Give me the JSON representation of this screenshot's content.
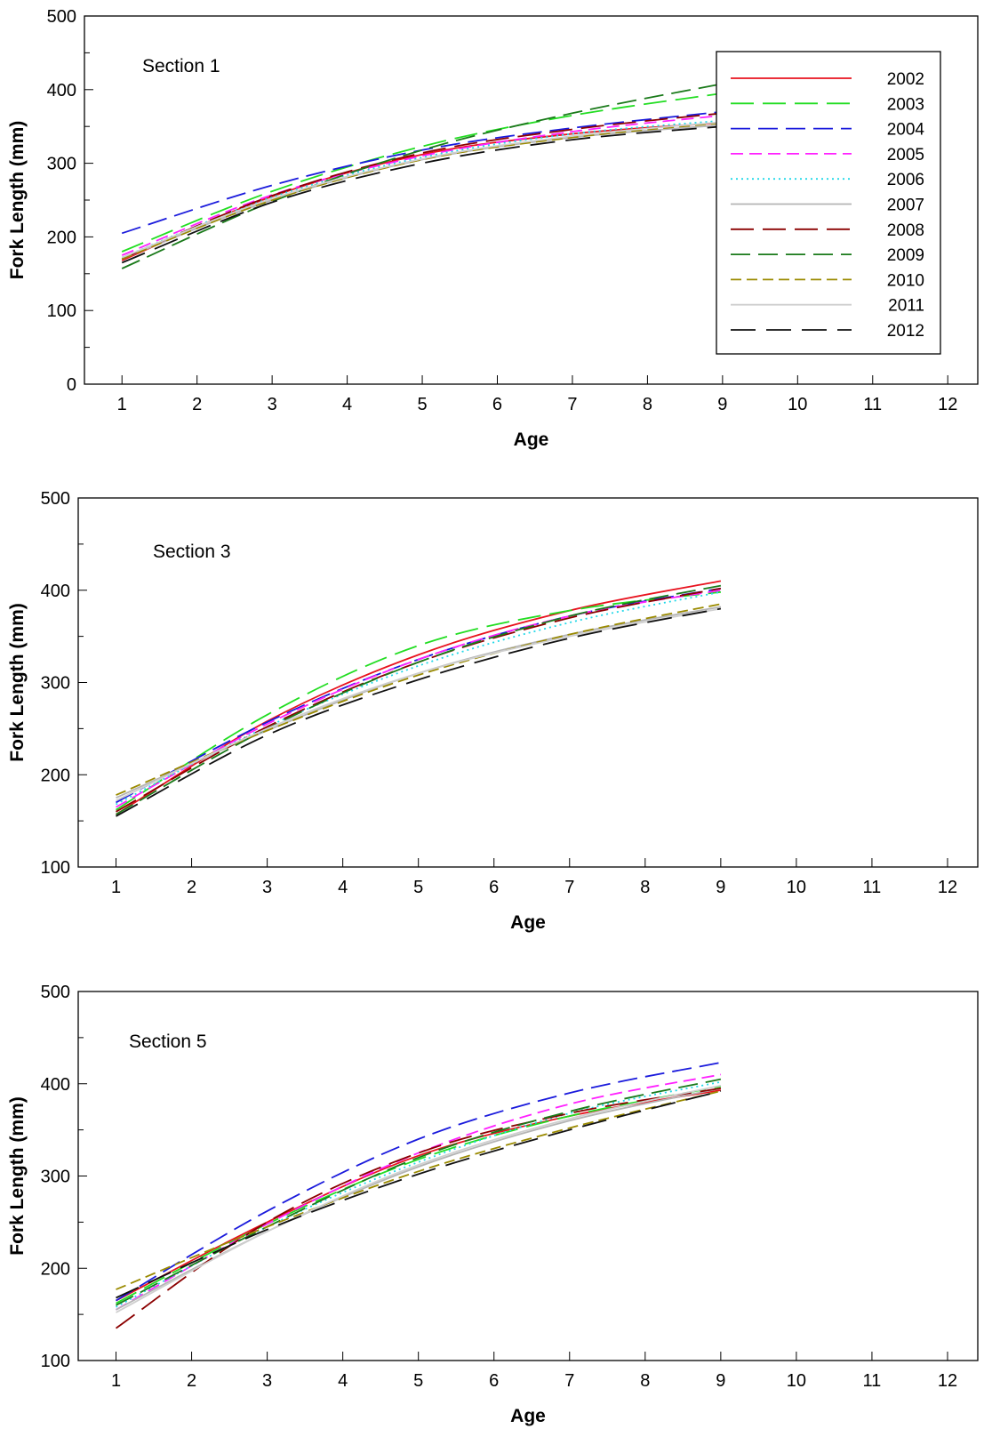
{
  "styles": {
    "2002": {
      "color": "#e8121e",
      "dash": ""
    },
    "2003": {
      "color": "#22dd22",
      "dash": "26 10"
    },
    "2004": {
      "color": "#1a1adc",
      "dash": "22 9"
    },
    "2005": {
      "color": "#ff20ff",
      "dash": "14 7"
    },
    "2006": {
      "color": "#22d8e8",
      "dash": "2 4"
    },
    "2007": {
      "color": "#b4b4b4",
      "dash": ""
    },
    "2008": {
      "color": "#8b0000",
      "dash": "26 10"
    },
    "2009": {
      "color": "#1a7a1a",
      "dash": "22 9"
    },
    "2010": {
      "color": "#9a8a00",
      "dash": "12 6"
    },
    "2011": {
      "color": "#cfcfcf",
      "dash": ""
    },
    "2012": {
      "color": "#111111",
      "dash": "28 12"
    }
  },
  "chart_data": [
    {
      "type": "line",
      "annotation": "Section 1",
      "xlabel": "Age",
      "ylabel": "Fork Length (mm)",
      "xlim": [
        0.5,
        12.4
      ],
      "ylim": [
        0,
        500
      ],
      "xticks": [
        "1",
        "2",
        "3",
        "4",
        "5",
        "6",
        "7",
        "8",
        "9",
        "10",
        "11",
        "12"
      ],
      "yticks": [
        "0",
        "100",
        "200",
        "300",
        "400",
        "500"
      ],
      "legend_position": "top-right",
      "legend": [
        "2002",
        "2003",
        "2004",
        "2005",
        "2006",
        "2007",
        "2008",
        "2009",
        "2010",
        "2011",
        "2012"
      ],
      "x": [
        1,
        3,
        5,
        7,
        9
      ],
      "series": [
        {
          "name": "2002",
          "values": [
            168,
            255,
            312,
            340,
            355
          ]
        },
        {
          "name": "2003",
          "values": [
            180,
            262,
            323,
            365,
            395
          ]
        },
        {
          "name": "2004",
          "values": [
            205,
            270,
            318,
            348,
            370
          ]
        },
        {
          "name": "2005",
          "values": [
            175,
            257,
            310,
            343,
            365
          ]
        },
        {
          "name": "2006",
          "values": [
            172,
            254,
            308,
            340,
            358
          ]
        },
        {
          "name": "2007",
          "values": [
            170,
            250,
            305,
            335,
            352
          ]
        },
        {
          "name": "2008",
          "values": [
            170,
            256,
            314,
            346,
            368
          ]
        },
        {
          "name": "2009",
          "values": [
            157,
            248,
            318,
            368,
            408
          ]
        },
        {
          "name": "2010",
          "values": [
            170,
            250,
            305,
            335,
            355
          ]
        },
        {
          "name": "2011",
          "values": [
            172,
            252,
            306,
            337,
            356
          ]
        },
        {
          "name": "2012",
          "values": [
            165,
            247,
            300,
            332,
            350
          ]
        }
      ]
    },
    {
      "type": "line",
      "annotation": "Section 3",
      "xlabel": "Age",
      "ylabel": "Fork Length (mm)",
      "xlim": [
        0.5,
        12.4
      ],
      "ylim": [
        100,
        500
      ],
      "xticks": [
        "1",
        "2",
        "3",
        "4",
        "5",
        "6",
        "7",
        "8",
        "9",
        "10",
        "11",
        "12"
      ],
      "yticks": [
        "100",
        "200",
        "300",
        "400",
        "500"
      ],
      "x": [
        1,
        3,
        5,
        7,
        9
      ],
      "series": [
        {
          "name": "2002",
          "values": [
            157,
            258,
            330,
            378,
            410
          ]
        },
        {
          "name": "2003",
          "values": [
            162,
            265,
            340,
            378,
            398
          ]
        },
        {
          "name": "2004",
          "values": [
            170,
            257,
            325,
            372,
            402
          ]
        },
        {
          "name": "2005",
          "values": [
            165,
            255,
            325,
            372,
            400
          ]
        },
        {
          "name": "2006",
          "values": [
            168,
            252,
            318,
            365,
            398
          ]
        },
        {
          "name": "2007",
          "values": [
            175,
            248,
            310,
            352,
            382
          ]
        },
        {
          "name": "2008",
          "values": [
            160,
            252,
            322,
            370,
            402
          ]
        },
        {
          "name": "2009",
          "values": [
            157,
            250,
            322,
            372,
            405
          ]
        },
        {
          "name": "2010",
          "values": [
            178,
            248,
            308,
            352,
            385
          ]
        },
        {
          "name": "2011",
          "values": [
            172,
            250,
            310,
            350,
            380
          ]
        },
        {
          "name": "2012",
          "values": [
            155,
            243,
            303,
            348,
            380
          ]
        }
      ]
    },
    {
      "type": "line",
      "annotation": "Section 5",
      "xlabel": "Age",
      "ylabel": "Fork Length (mm)",
      "xlim": [
        0.5,
        12.4
      ],
      "ylim": [
        100,
        500
      ],
      "xticks": [
        "1",
        "2",
        "3",
        "4",
        "5",
        "6",
        "7",
        "8",
        "9",
        "10",
        "11",
        "12"
      ],
      "yticks": [
        "100",
        "200",
        "300",
        "400",
        "500"
      ],
      "x": [
        1,
        3,
        5,
        7,
        9
      ],
      "series": [
        {
          "name": "2002",
          "values": [
            165,
            250,
            322,
            365,
            393
          ]
        },
        {
          "name": "2003",
          "values": [
            162,
            248,
            318,
            365,
            397
          ]
        },
        {
          "name": "2004",
          "values": [
            165,
            262,
            340,
            390,
            423
          ]
        },
        {
          "name": "2005",
          "values": [
            155,
            248,
            325,
            378,
            410
          ]
        },
        {
          "name": "2006",
          "values": [
            158,
            245,
            315,
            368,
            402
          ]
        },
        {
          "name": "2007",
          "values": [
            155,
            240,
            310,
            360,
            395
          ]
        },
        {
          "name": "2008",
          "values": [
            135,
            250,
            325,
            368,
            395
          ]
        },
        {
          "name": "2009",
          "values": [
            160,
            245,
            320,
            370,
            405
          ]
        },
        {
          "name": "2010",
          "values": [
            177,
            245,
            305,
            352,
            392
          ]
        },
        {
          "name": "2011",
          "values": [
            152,
            240,
            312,
            362,
            398
          ]
        },
        {
          "name": "2012",
          "values": [
            168,
            242,
            302,
            350,
            392
          ]
        }
      ]
    }
  ]
}
